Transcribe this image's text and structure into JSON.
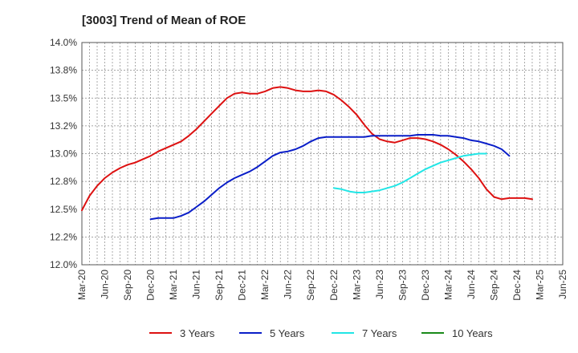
{
  "chart_data": {
    "type": "line",
    "title": "[3003]  Trend of Mean of ROE",
    "xlabel": "",
    "ylabel": "",
    "x_ticks": [
      "Mar-20",
      "Jun-20",
      "Sep-20",
      "Dec-20",
      "Mar-21",
      "Jun-21",
      "Sep-21",
      "Dec-21",
      "Mar-22",
      "Jun-22",
      "Sep-22",
      "Dec-22",
      "Mar-23",
      "Jun-23",
      "Sep-23",
      "Dec-23",
      "Mar-24",
      "Jun-24",
      "Sep-24",
      "Dec-24",
      "Mar-25",
      "Jun-25"
    ],
    "y_ticks": [
      "12.0%",
      "12.2%",
      "12.5%",
      "12.8%",
      "13.0%",
      "13.2%",
      "13.5%",
      "13.8%",
      "14.0%"
    ],
    "ylim": [
      12.0,
      14.0
    ],
    "grid": true,
    "legend_position": "bottom",
    "series": [
      {
        "name": "3 Years",
        "color": "#dd1111",
        "start_index": 0,
        "values": [
          12.49,
          12.62,
          12.71,
          12.78,
          12.83,
          12.87,
          12.9,
          12.92,
          12.95,
          12.98,
          13.02,
          13.05,
          13.08,
          13.11,
          13.16,
          13.22,
          13.29,
          13.36,
          13.43,
          13.5,
          13.54,
          13.55,
          13.54,
          13.54,
          13.56,
          13.59,
          13.6,
          13.59,
          13.57,
          13.56,
          13.56,
          13.57,
          13.56,
          13.53,
          13.48,
          13.42,
          13.35,
          13.26,
          13.18,
          13.13,
          13.11,
          13.1,
          13.12,
          13.14,
          13.14,
          13.13,
          13.11,
          13.08,
          13.04,
          12.99,
          12.93,
          12.86,
          12.78,
          12.68,
          12.61,
          12.59,
          12.6,
          12.6,
          12.6,
          12.59
        ]
      },
      {
        "name": "5 Years",
        "color": "#0a1ec8",
        "start_index": 9,
        "values": [
          12.41,
          12.42,
          12.42,
          12.42,
          12.44,
          12.47,
          12.52,
          12.57,
          12.63,
          12.69,
          12.74,
          12.78,
          12.81,
          12.84,
          12.88,
          12.93,
          12.98,
          13.01,
          13.02,
          13.04,
          13.07,
          13.11,
          13.14,
          13.15,
          13.15,
          13.15,
          13.15,
          13.15,
          13.15,
          13.16,
          13.16,
          13.16,
          13.16,
          13.16,
          13.16,
          13.17,
          13.17,
          13.17,
          13.16,
          13.16,
          13.15,
          13.14,
          13.12,
          13.11,
          13.09,
          13.07,
          13.04,
          12.98
        ]
      },
      {
        "name": "7 Years",
        "color": "#22e6e6",
        "start_index": 33,
        "values": [
          12.69,
          12.68,
          12.66,
          12.65,
          12.65,
          12.66,
          12.67,
          12.69,
          12.71,
          12.74,
          12.78,
          12.82,
          12.86,
          12.89,
          12.92,
          12.94,
          12.96,
          12.98,
          12.99,
          13.0,
          13.0
        ]
      },
      {
        "name": "10 Years",
        "color": "#1a8a1a",
        "start_index": 0,
        "values": []
      }
    ]
  }
}
